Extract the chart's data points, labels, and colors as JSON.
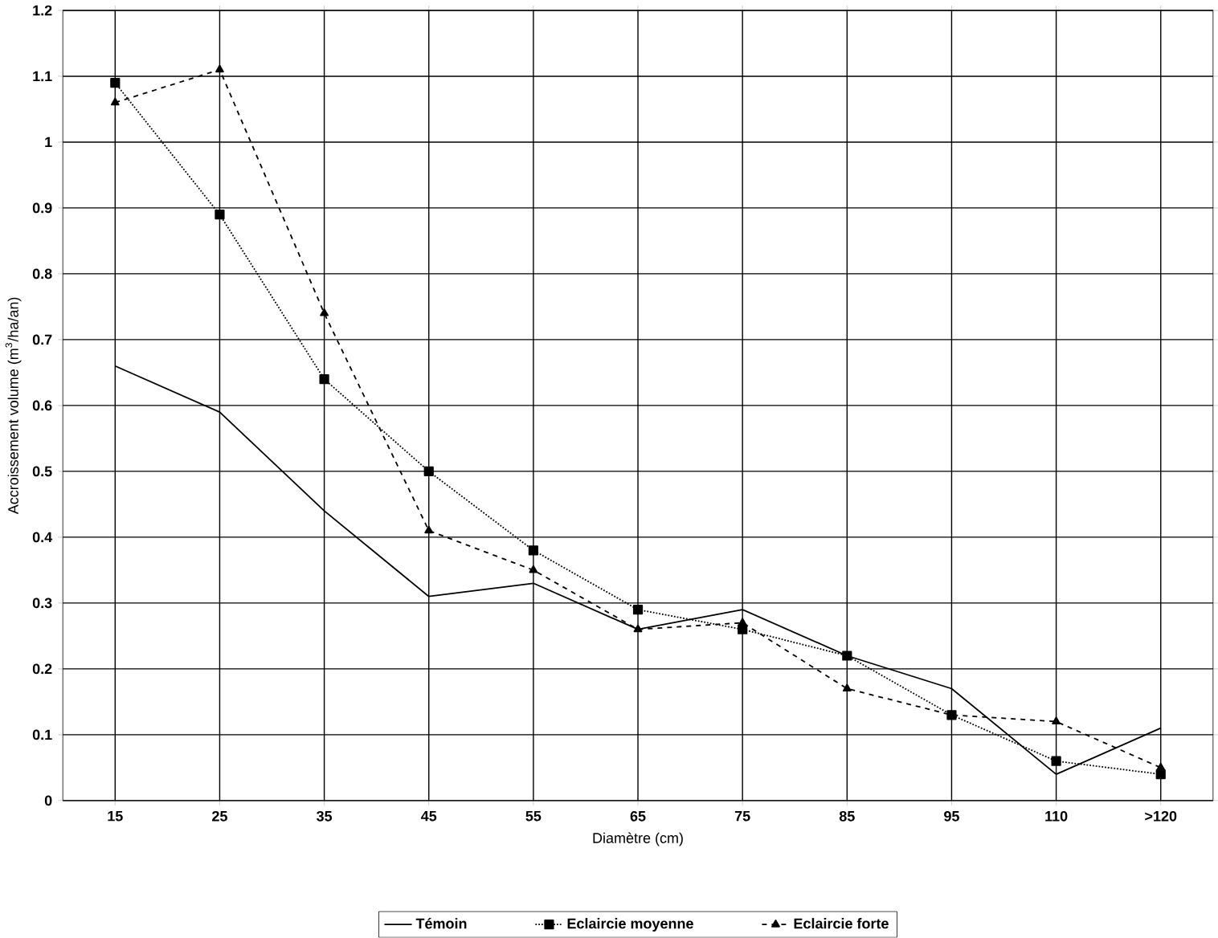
{
  "chart_data": {
    "type": "line",
    "xlabel": "Diamètre (cm)",
    "ylabel": "Accroissement volume (m$^{3}$/ha/an)",
    "categories": [
      "15",
      "25",
      "35",
      "45",
      "55",
      "65",
      "75",
      "85",
      "95",
      "110",
      ">120"
    ],
    "series": [
      {
        "name": "Témoin",
        "color": "#000000",
        "line_style": "solid",
        "marker": "none",
        "values": [
          0.66,
          0.59,
          0.44,
          0.31,
          0.33,
          0.26,
          0.29,
          0.22,
          0.17,
          0.04,
          0.11
        ]
      },
      {
        "name": "Eclaircie moyenne",
        "color": "#000000",
        "line_style": "dotted",
        "marker": "square",
        "values": [
          1.09,
          0.89,
          0.64,
          0.5,
          0.38,
          0.29,
          0.26,
          0.22,
          0.13,
          0.06,
          0.04
        ]
      },
      {
        "name": "Eclaircie forte",
        "color": "#000000",
        "line_style": "dashed",
        "marker": "triangle",
        "values": [
          1.06,
          1.11,
          0.74,
          0.41,
          0.35,
          0.26,
          0.27,
          0.17,
          0.13,
          0.12,
          0.05
        ]
      }
    ],
    "ylim": [
      0,
      1.2
    ],
    "yticks": [
      0,
      0.1,
      0.2,
      0.3,
      0.4,
      0.5,
      0.6,
      0.7,
      0.8,
      0.9,
      1,
      1.1,
      1.2
    ],
    "grid": true,
    "legend": "bottom"
  }
}
